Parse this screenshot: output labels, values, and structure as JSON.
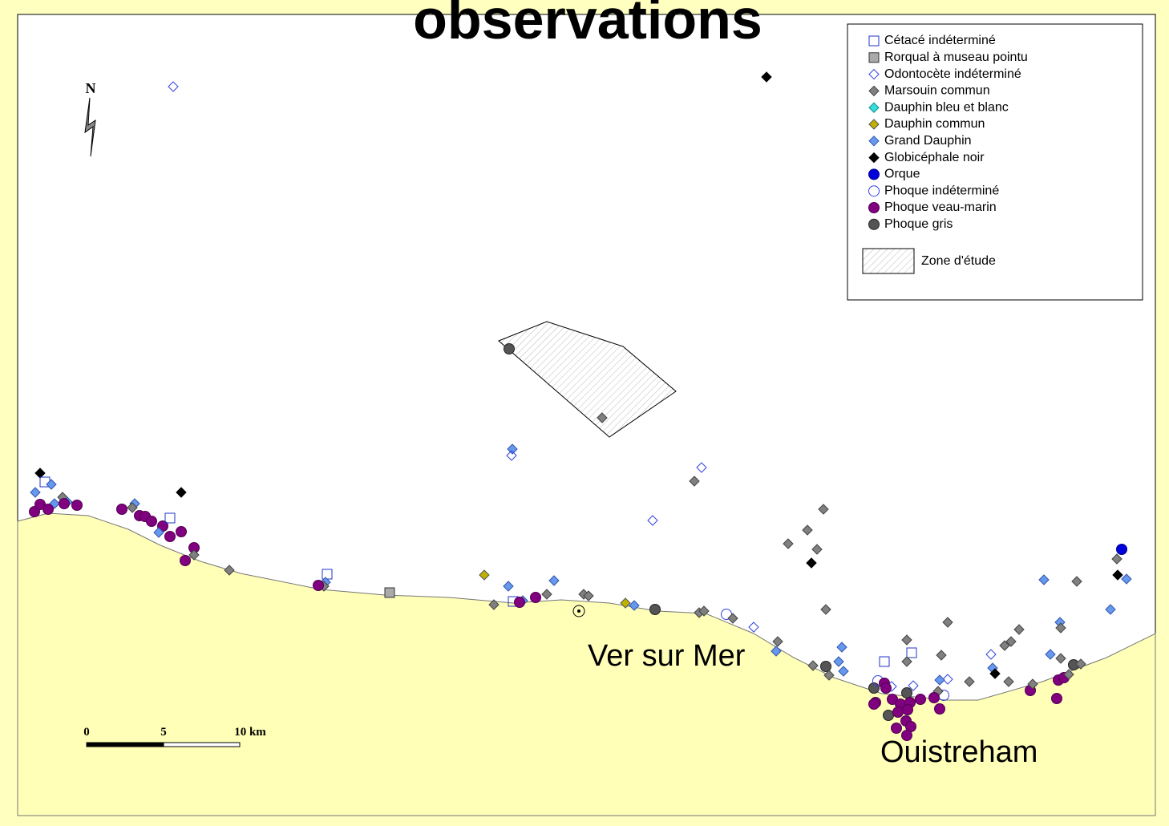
{
  "title": "observations",
  "north": "N",
  "legend": {
    "items": [
      "Cétacé indéterminé",
      "Rorqual à museau pointu",
      "Odontocète indéterminé",
      "Marsouin commun",
      "Dauphin bleu et blanc",
      "Dauphin commun",
      "Grand Dauphin",
      "Globicéphale noir",
      "Orque",
      "Phoque indéterminé",
      "Phoque veau-marin",
      "Phoque gris"
    ],
    "zone": "Zone d'étude"
  },
  "places": [
    "Ver sur Mer",
    "Ouistreham"
  ],
  "scale_bar": [
    "0",
    "5",
    "10 km"
  ]
}
